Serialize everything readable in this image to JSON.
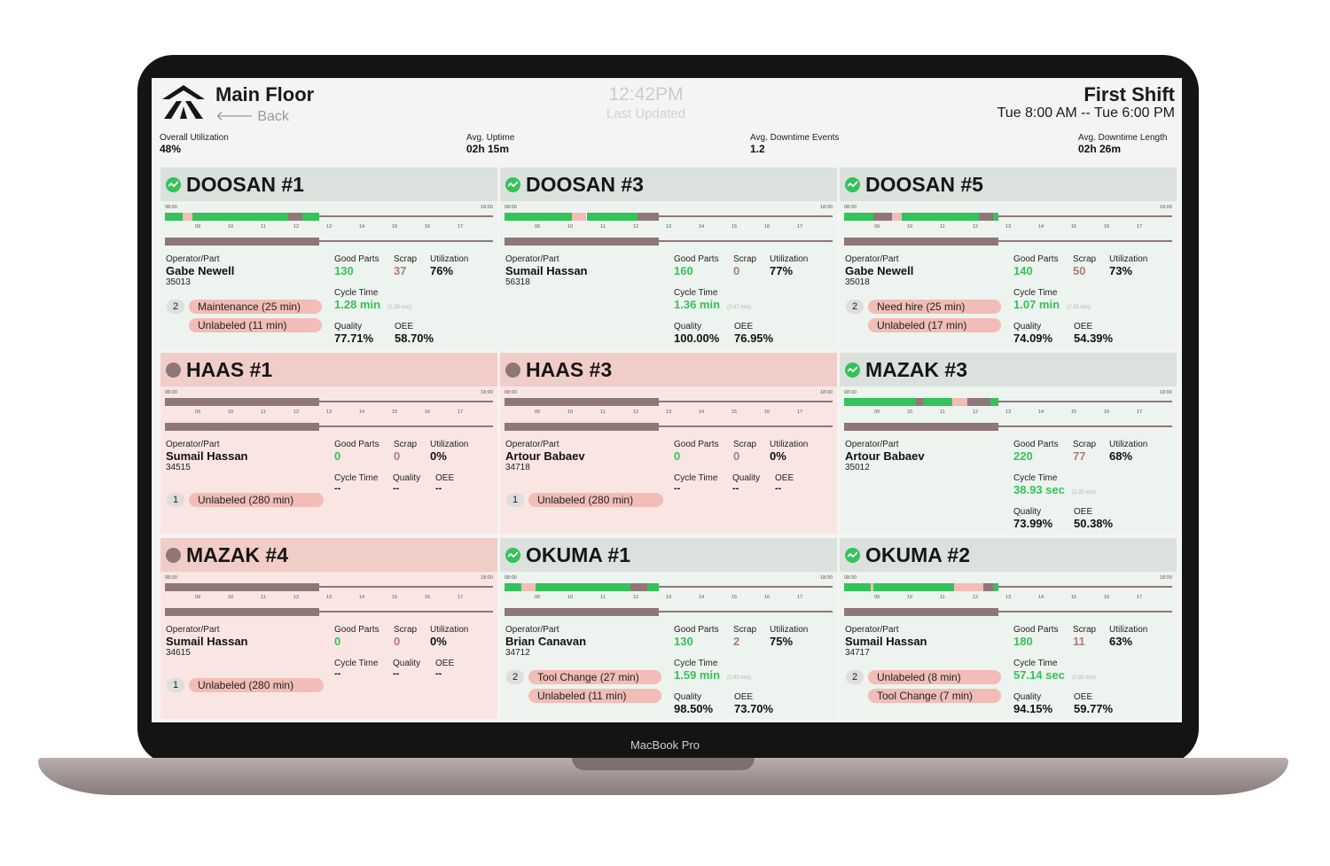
{
  "header": {
    "title": "Main Floor",
    "back_label": "Back",
    "clock": "12:42PM",
    "last_updated_label": "Last Updated",
    "shift_name": "First Shift",
    "shift_range": "Tue 8:00 AM -- Tue 6:00 PM"
  },
  "device_label": "MacBook Pro",
  "stats": [
    {
      "label": "Overall Utilization",
      "value": "48%"
    },
    {
      "label": "Avg. Uptime",
      "value": "02h 15m"
    },
    {
      "label": "Avg. Downtime Events",
      "value": "1.2"
    },
    {
      "label": "Avg. Downtime Length",
      "value": "02h 26m"
    }
  ],
  "timeline": {
    "start_label": "08:00",
    "end_label": "18:00",
    "hour_ticks": [
      "09",
      "10",
      "11",
      "12",
      "13",
      "14",
      "15",
      "16",
      "17"
    ]
  },
  "colors": {
    "running": "#35c25a",
    "downtime": "#f2bdb6",
    "idle": "#8f7677",
    "down_card": "#f9e6e3"
  },
  "labels": {
    "operator_part": "Operator/Part",
    "good_parts": "Good Parts",
    "scrap": "Scrap",
    "utilization": "Utilization",
    "cycle_time": "Cycle Time",
    "quality": "Quality",
    "oee": "OEE"
  },
  "machines": [
    {
      "name": "DOOSAN #1",
      "status": "running",
      "operator": "Gabe Newell",
      "part": "35013",
      "good_parts": "130",
      "scrap": "37",
      "utilization": "76%",
      "cycle_time": "1.28 min",
      "cycle_ref": "(2.28 min)",
      "quality": "77.71%",
      "oee": "58.70%",
      "downtime_count": "2",
      "downtime": [
        "Maintenance (25 min)",
        "Unlabeled (11 min)"
      ]
    },
    {
      "name": "DOOSAN #3",
      "status": "running",
      "operator": "Sumail Hassan",
      "part": "56318",
      "good_parts": "160",
      "scrap": "0",
      "utilization": "77%",
      "cycle_time": "1.36 min",
      "cycle_ref": "(3.67 min)",
      "quality": "100.00%",
      "oee": "76.95%",
      "downtime_count": "",
      "downtime": []
    },
    {
      "name": "DOOSAN #5",
      "status": "running",
      "operator": "Gabe Newell",
      "part": "35018",
      "good_parts": "140",
      "scrap": "50",
      "utilization": "73%",
      "cycle_time": "1.07 min",
      "cycle_ref": "(2.28 min)",
      "quality": "74.09%",
      "oee": "54.39%",
      "downtime_count": "2",
      "downtime": [
        "Need hire (25 min)",
        "Unlabeled (17 min)"
      ]
    },
    {
      "name": "HAAS #1",
      "status": "down",
      "operator": "Sumail Hassan",
      "part": "34515",
      "good_parts": "0",
      "scrap": "0",
      "utilization": "0%",
      "cycle_time": "--",
      "cycle_ref": "",
      "quality": "--",
      "oee": "--",
      "downtime_count": "1",
      "downtime": [
        "Unlabeled (280 min)"
      ]
    },
    {
      "name": "HAAS #3",
      "status": "down",
      "operator": "Artour Babaev",
      "part": "34718",
      "good_parts": "0",
      "scrap": "0",
      "utilization": "0%",
      "cycle_time": "--",
      "cycle_ref": "",
      "quality": "--",
      "oee": "--",
      "downtime_count": "1",
      "downtime": [
        "Unlabeled (280 min)"
      ]
    },
    {
      "name": "MAZAK #3",
      "status": "running",
      "operator": "Artour Babaev",
      "part": "35012",
      "good_parts": "220",
      "scrap": "77",
      "utilization": "68%",
      "cycle_time": "38.93 sec",
      "cycle_ref": "(2.25 min)",
      "quality": "73.99%",
      "oee": "50.38%",
      "downtime_count": "",
      "downtime": []
    },
    {
      "name": "MAZAK #4",
      "status": "down",
      "operator": "Sumail Hassan",
      "part": "34615",
      "good_parts": "0",
      "scrap": "0",
      "utilization": "0%",
      "cycle_time": "--",
      "cycle_ref": "",
      "quality": "--",
      "oee": "--",
      "downtime_count": "1",
      "downtime": [
        "Unlabeled (280 min)"
      ]
    },
    {
      "name": "OKUMA #1",
      "status": "running",
      "operator": "Brian Canavan",
      "part": "34712",
      "good_parts": "130",
      "scrap": "2",
      "utilization": "75%",
      "cycle_time": "1.59 min",
      "cycle_ref": "(2.83 min)",
      "quality": "98.50%",
      "oee": "73.70%",
      "downtime_count": "2",
      "downtime": [
        "Tool Change (27 min)",
        "Unlabeled (11 min)"
      ]
    },
    {
      "name": "OKUMA #2",
      "status": "running",
      "operator": "Sumail Hassan",
      "part": "34717",
      "good_parts": "180",
      "scrap": "11",
      "utilization": "63%",
      "cycle_time": "57.14 sec",
      "cycle_ref": "(2.83 min)",
      "quality": "94.15%",
      "oee": "59.77%",
      "downtime_count": "2",
      "downtime": [
        "Unlabeled (8 min)",
        "Tool Change (7 min)"
      ]
    }
  ]
}
